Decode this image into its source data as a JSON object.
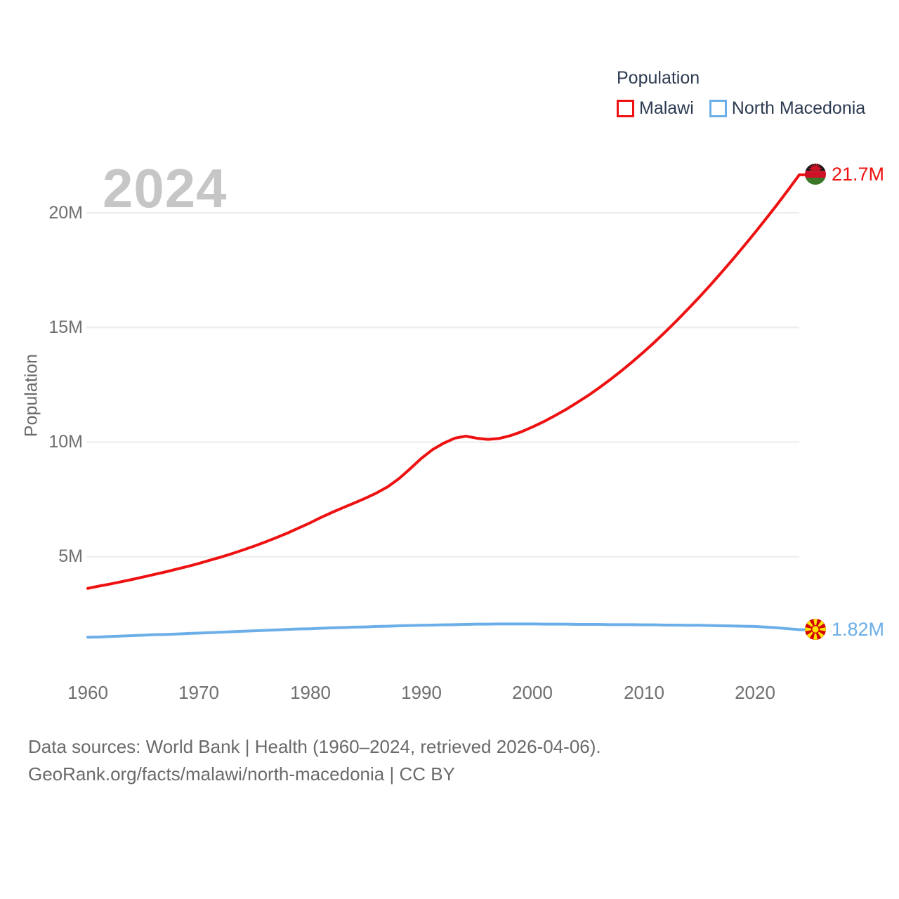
{
  "legend": {
    "title": "Population",
    "items": [
      {
        "label": "Malawi",
        "color": "#ee1111"
      },
      {
        "label": "North Macedonia",
        "color": "#6cafe8"
      }
    ]
  },
  "watermark": "2024",
  "y_axis": {
    "title": "Population",
    "tick_labels": [
      "20M",
      "15M",
      "10M",
      "5M"
    ]
  },
  "x_axis": {
    "tick_labels": [
      "1960",
      "1970",
      "1980",
      "1990",
      "2000",
      "2010",
      "2020"
    ]
  },
  "end_labels": {
    "malawi": "21.7M",
    "north_macedonia": "1.82M"
  },
  "icons": {
    "malawi_flag": "malawi-flag",
    "north_macedonia_flag": "north-macedonia-flag"
  },
  "footer": {
    "line1": "Data sources: World Bank | Health (1960–2024, retrieved 2026-04-06).",
    "line2": "GeoRank.org/facts/malawi/north-macedonia | CC BY"
  },
  "colors": {
    "malawi": "#ee1111",
    "north_macedonia": "#6cafe8",
    "grid": "#ececec",
    "tick_text": "#6e6e6e",
    "legend_text": "#2d3b52",
    "watermark": "#c6c6c6"
  },
  "chart_data": {
    "type": "line",
    "title": "Population",
    "xlabel": "",
    "ylabel": "Population",
    "x_start": 1960,
    "x_end": 2024,
    "x_ticks": [
      1960,
      1970,
      1980,
      1990,
      2000,
      2010,
      2020
    ],
    "y_ticks": [
      5,
      10,
      15,
      20
    ],
    "y_tick_suffix": "M",
    "ylim": [
      0,
      22.5
    ],
    "grid": "horizontal-only",
    "legend_position": "top-right",
    "series": [
      {
        "name": "Malawi",
        "color": "#ee1111",
        "end_label": "21.7M",
        "unit": "millions",
        "values": [
          3.62,
          3.72,
          3.81,
          3.91,
          4.01,
          4.12,
          4.23,
          4.34,
          4.46,
          4.58,
          4.71,
          4.85,
          4.99,
          5.14,
          5.3,
          5.47,
          5.65,
          5.84,
          6.04,
          6.26,
          6.48,
          6.72,
          6.94,
          7.15,
          7.35,
          7.56,
          7.79,
          8.06,
          8.41,
          8.84,
          9.29,
          9.67,
          9.95,
          10.17,
          10.26,
          10.17,
          10.12,
          10.16,
          10.28,
          10.45,
          10.66,
          10.89,
          11.15,
          11.42,
          11.72,
          12.03,
          12.37,
          12.73,
          13.11,
          13.51,
          13.93,
          14.37,
          14.83,
          15.31,
          15.81,
          16.32,
          16.85,
          17.4,
          17.96,
          18.54,
          19.13,
          19.74,
          20.36,
          21.0,
          21.66
        ]
      },
      {
        "name": "North Macedonia",
        "color": "#6cafe8",
        "end_label": "1.82M",
        "unit": "millions",
        "values": [
          1.49,
          1.5,
          1.52,
          1.54,
          1.56,
          1.58,
          1.6,
          1.61,
          1.63,
          1.65,
          1.67,
          1.69,
          1.71,
          1.73,
          1.75,
          1.77,
          1.79,
          1.81,
          1.83,
          1.85,
          1.86,
          1.88,
          1.9,
          1.91,
          1.93,
          1.94,
          1.96,
          1.97,
          1.99,
          2.0,
          2.01,
          2.02,
          2.03,
          2.04,
          2.05,
          2.06,
          2.06,
          2.07,
          2.07,
          2.07,
          2.07,
          2.06,
          2.06,
          2.06,
          2.05,
          2.05,
          2.05,
          2.04,
          2.04,
          2.04,
          2.03,
          2.03,
          2.02,
          2.02,
          2.01,
          2.01,
          2.0,
          1.99,
          1.98,
          1.97,
          1.96,
          1.93,
          1.9,
          1.86,
          1.82
        ]
      }
    ]
  }
}
